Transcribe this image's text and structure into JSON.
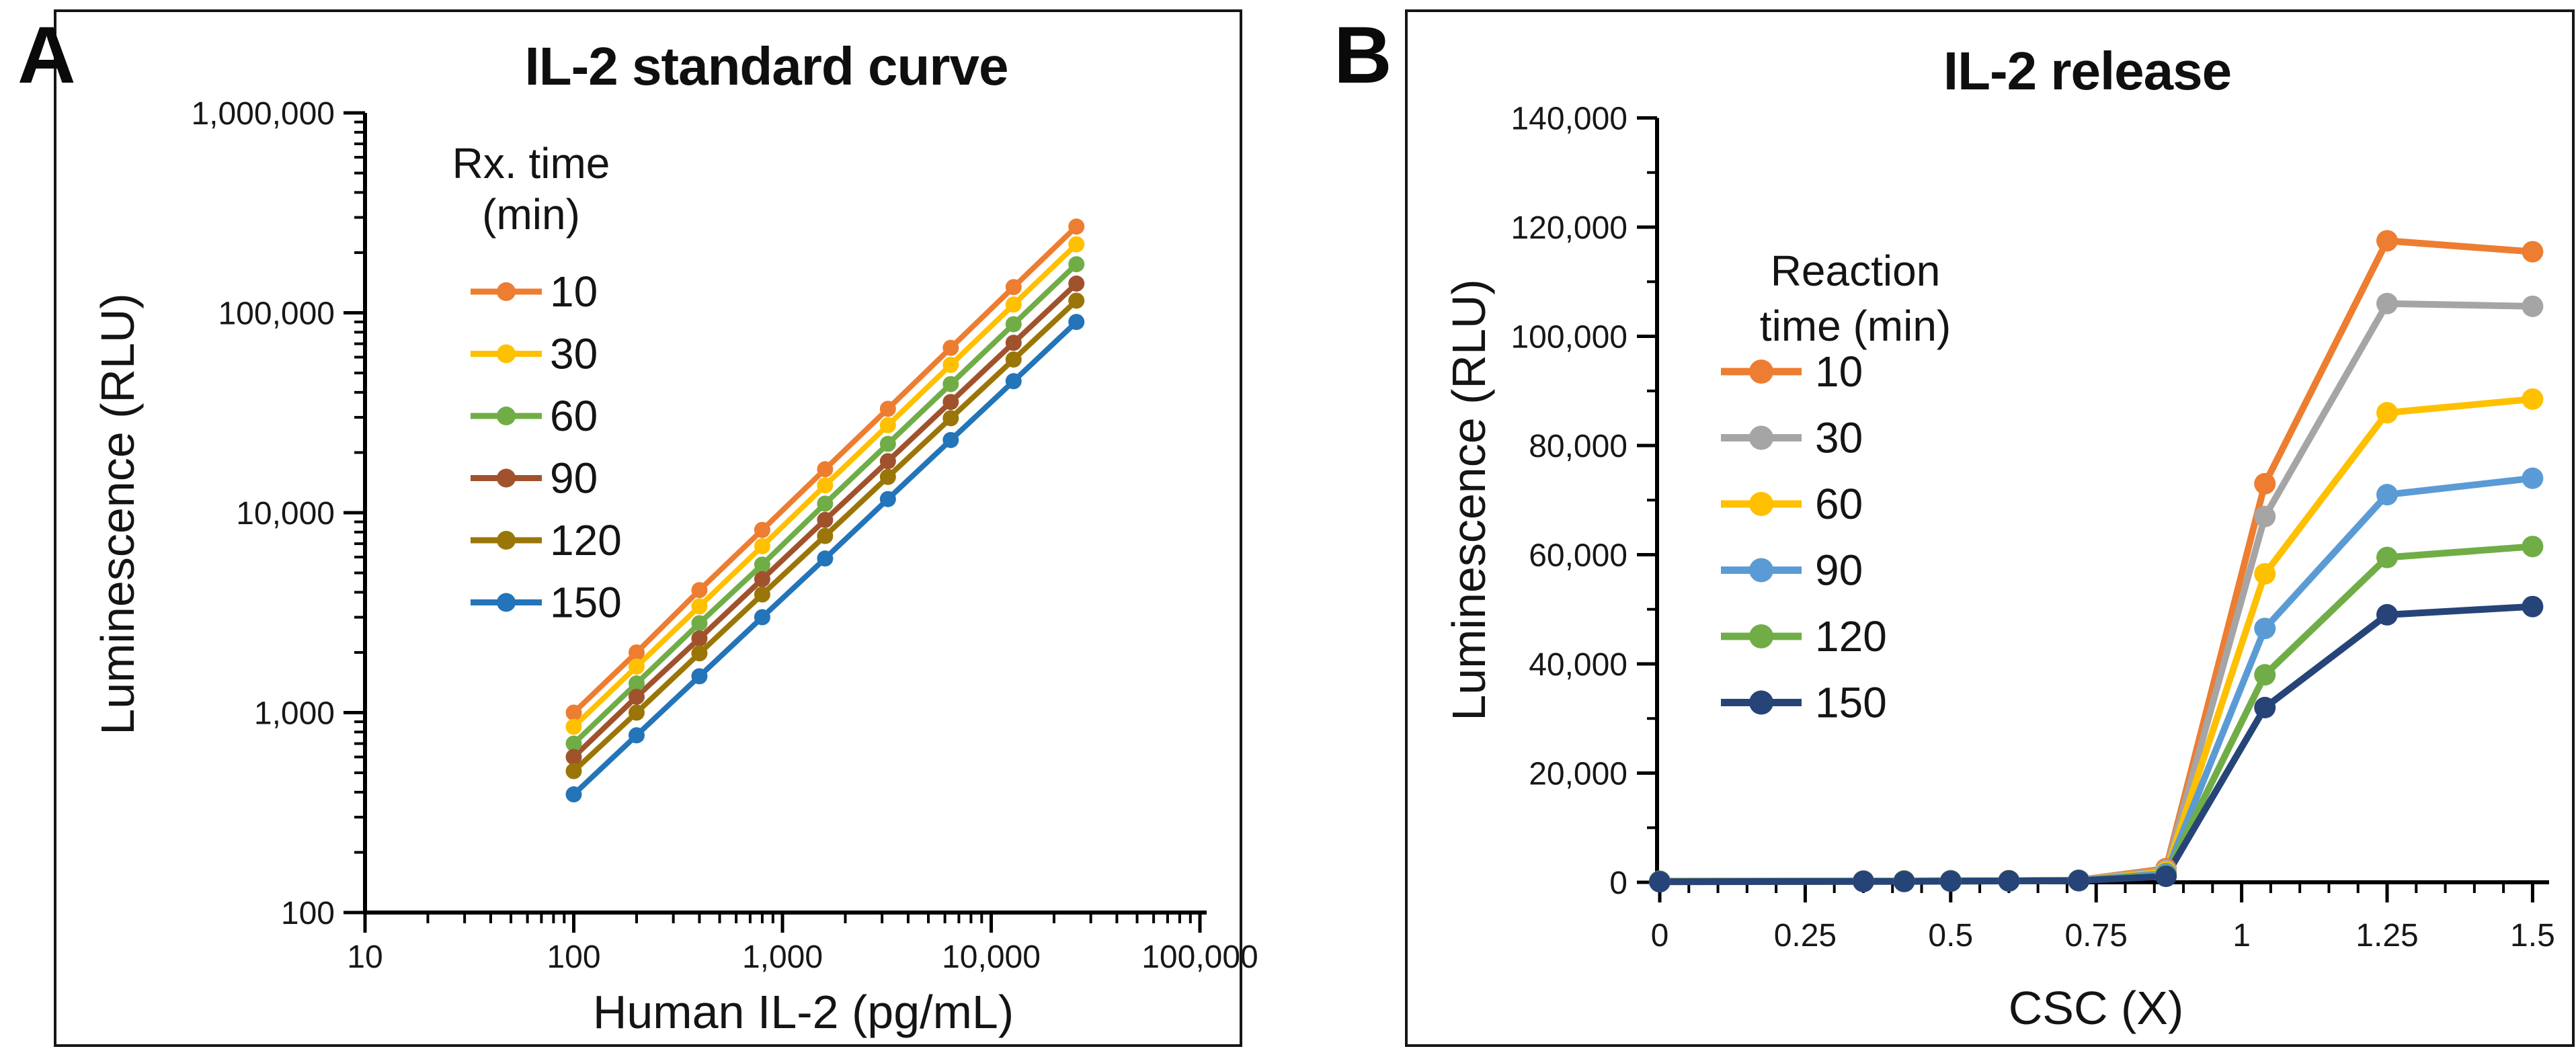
{
  "figure": {
    "panels": [
      {
        "label": "A"
      },
      {
        "label": "B"
      }
    ]
  },
  "chart_data": [
    {
      "panel": "A",
      "type": "line",
      "title": "IL-2 standard curve",
      "xlabel": "Human IL-2 (pg/mL)",
      "ylabel": "Luminescence (RLU)",
      "x_scale": "log",
      "y_scale": "log",
      "xlim": [
        10,
        100000
      ],
      "ylim": [
        100,
        1000000
      ],
      "grid": false,
      "legend_position": "upper-left-inside",
      "legend_title_lines": [
        "Rx. time",
        "(min)"
      ],
      "x_tick_labels": [
        "10",
        "100",
        "1,000",
        "10,000",
        "100,000"
      ],
      "x_tick_values": [
        10,
        100,
        1000,
        10000,
        100000
      ],
      "y_tick_labels": [
        "1,000,000",
        "100,000",
        "10,000",
        "1,000",
        "100"
      ],
      "y_tick_values": [
        1000000,
        100000,
        10000,
        1000,
        100
      ],
      "x": [
        100,
        200,
        400,
        800,
        1600,
        3200,
        6400,
        12800,
        25600
      ],
      "series": [
        {
          "name": "10",
          "color": "#ED7D31",
          "values": [
            1000,
            2000,
            4100,
            8200,
            16500,
            33100,
            66800,
            134500,
            270000
          ]
        },
        {
          "name": "30",
          "color": "#FFC000",
          "values": [
            850,
            1700,
            3400,
            6800,
            13700,
            27400,
            54900,
            109900,
            220000
          ]
        },
        {
          "name": "60",
          "color": "#70AD47",
          "values": [
            700,
            1400,
            2800,
            5500,
            11100,
            22100,
            44000,
            87700,
            175000
          ]
        },
        {
          "name": "90",
          "color": "#A0522D",
          "values": [
            600,
            1200,
            2350,
            4650,
            9200,
            18100,
            35800,
            70800,
            140000
          ]
        },
        {
          "name": "120",
          "color": "#9A7608",
          "values": [
            510,
            1000,
            1980,
            3900,
            7650,
            15100,
            29700,
            58400,
            115000
          ]
        },
        {
          "name": "150",
          "color": "#2374B8",
          "values": [
            390,
            770,
            1520,
            3000,
            5900,
            11700,
            23100,
            45500,
            90000
          ]
        }
      ]
    },
    {
      "panel": "B",
      "type": "line",
      "title": "IL-2 release",
      "xlabel": "CSC (X)",
      "ylabel": "Luminescence (RLU)",
      "x_scale": "linear",
      "y_scale": "linear",
      "xlim": [
        0,
        1.5
      ],
      "ylim": [
        0,
        140000
      ],
      "grid": false,
      "legend_position": "upper-left-inside",
      "legend_title_lines": [
        "Reaction",
        "time (min)"
      ],
      "x_tick_labels": [
        "0",
        "0.25",
        "0.5",
        "0.75",
        "1",
        "1.25",
        "1.5"
      ],
      "x_tick_values": [
        0,
        0.25,
        0.5,
        0.75,
        1,
        1.25,
        1.5
      ],
      "y_tick_labels": [
        "140,000",
        "120,000",
        "100,000",
        "80,000",
        "60,000",
        "40,000",
        "20,000",
        "0"
      ],
      "y_tick_values": [
        140000,
        120000,
        100000,
        80000,
        60000,
        40000,
        20000,
        0
      ],
      "x": [
        0,
        0.35,
        0.42,
        0.5,
        0.6,
        0.72,
        0.87,
        1.04,
        1.25,
        1.5
      ],
      "series": [
        {
          "name": "10",
          "color": "#ED7D31",
          "values": [
            200,
            250,
            250,
            300,
            300,
            400,
            2500,
            73000,
            117500,
            115500
          ]
        },
        {
          "name": "30",
          "color": "#A5A5A5",
          "values": [
            200,
            250,
            250,
            300,
            300,
            400,
            2200,
            67000,
            106000,
            105500
          ]
        },
        {
          "name": "60",
          "color": "#FFC000",
          "values": [
            150,
            200,
            200,
            250,
            300,
            350,
            1900,
            56500,
            86000,
            88500
          ]
        },
        {
          "name": "90",
          "color": "#5B9BD5",
          "values": [
            150,
            200,
            200,
            250,
            250,
            350,
            1600,
            46500,
            71000,
            74000
          ]
        },
        {
          "name": "120",
          "color": "#70AD47",
          "values": [
            150,
            150,
            200,
            200,
            250,
            300,
            1300,
            38000,
            59500,
            61500
          ]
        },
        {
          "name": "150",
          "color": "#264478",
          "values": [
            100,
            150,
            150,
            200,
            250,
            300,
            1100,
            32000,
            49000,
            50500
          ]
        }
      ]
    }
  ]
}
